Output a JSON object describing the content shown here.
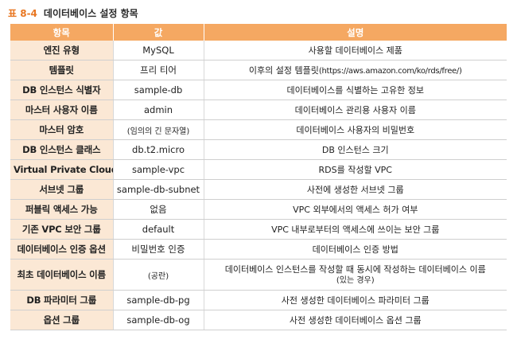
{
  "caption": {
    "number": "표 8-4",
    "title": "데이터베이스 설정 항목"
  },
  "table": {
    "headers": [
      "항목",
      "값",
      "설명"
    ],
    "rows": [
      {
        "item": "엔진 유형",
        "value": "MySQL",
        "desc": "사용할 데이터베이스 제품"
      },
      {
        "item": "템플릿",
        "value": "프리 티어",
        "desc_prefix": "이후의 설정 템플릿",
        "desc_url": "(https://aws.amazon.com/ko/rds/free/)"
      },
      {
        "item": "DB 인스턴스 식별자",
        "value": "sample-db",
        "desc": "데이터베이스를 식별하는 고유한 정보"
      },
      {
        "item": "마스터 사용자 이름",
        "value": "admin",
        "desc": "데이터베이스 관리용 사용자 이름"
      },
      {
        "item": "마스터 암호",
        "value": "(임의의 긴 문자열)",
        "desc": "데이터베이스 사용자의 비밀번호"
      },
      {
        "item": "DB 인스턴스 클래스",
        "value": "db.t2.micro",
        "desc": "DB 인스턴스 크기"
      },
      {
        "item": "Virtual Private Cloud",
        "value": "sample-vpc",
        "desc": "RDS를 작성할 VPC"
      },
      {
        "item": "서브넷 그룹",
        "value": "sample-db-subnet",
        "desc": "사전에 생성한 서브넷 그룹"
      },
      {
        "item": "퍼블릭 액세스 가능",
        "value": "없음",
        "desc": "VPC 외부에서의 액세스 허가 여부"
      },
      {
        "item": "기존 VPC 보안 그룹",
        "value": "default",
        "desc": "VPC 내부로부터의 액세스에 쓰이는 보안 그룹"
      },
      {
        "item": "데이터베이스 인증 옵션",
        "value": "비밀번호 인증",
        "desc": "데이터베이스 인증 방법"
      },
      {
        "item": "최초 데이터베이스 이름",
        "value": "(공란)",
        "desc": "데이터베이스 인스턴스를 작성할 때 동시에 작성하는 데이터베이스 이름",
        "desc_note": "(있는 경우)"
      },
      {
        "item": "DB 파라미터 그룹",
        "value": "sample-db-pg",
        "desc": "사전 생성한 데이터베이스 파라미터 그룹"
      },
      {
        "item": "옵션 그룹",
        "value": "sample-db-og",
        "desc": "사전 생성한 데이터베이스 옵션 그룹"
      }
    ]
  }
}
